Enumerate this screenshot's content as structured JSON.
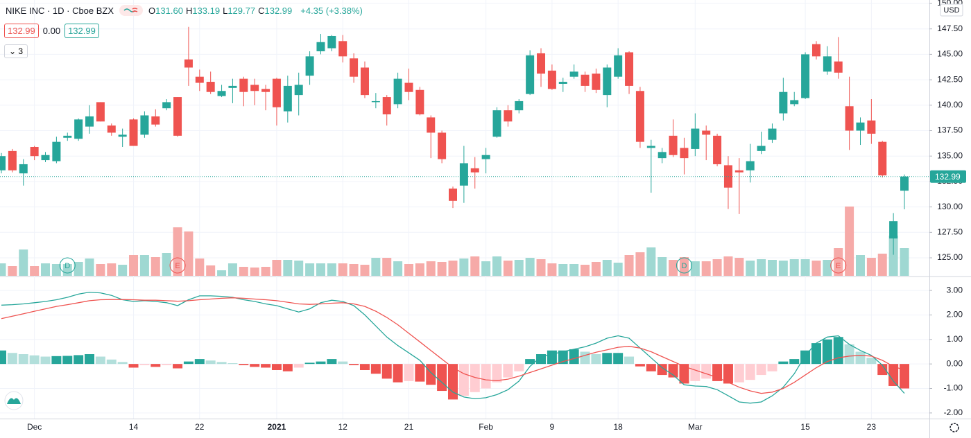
{
  "header": {
    "title": "NIKE INC · 1D · Cboe BZX",
    "ohlc": [
      {
        "key": "O",
        "value": "131.60"
      },
      {
        "key": "H",
        "value": "133.19"
      },
      {
        "key": "L",
        "value": "129.77"
      },
      {
        "key": "C",
        "value": "132.99"
      }
    ],
    "change": "+4.35 (+3.38%)",
    "price_boxes": [
      "132.99",
      "0.00",
      "132.99"
    ],
    "indicators_count": "3"
  },
  "chart_data": [
    {
      "type": "candlestick",
      "currency": "USD",
      "last_price_label": "132.99",
      "grid": true,
      "up_color": "#26a69a",
      "down_color": "#ef5350",
      "volume_up_color": "#9fd8d2",
      "volume_down_color": "#f6aaa8",
      "ylim": [
        123.23,
        150.34
      ],
      "yticks": [
        {
          "value": 150,
          "label": "150.00"
        },
        {
          "value": 147.5,
          "label": "147.50"
        },
        {
          "value": 145,
          "label": "145.00"
        },
        {
          "value": 142.5,
          "label": "142.50"
        },
        {
          "value": 140,
          "label": "140.00"
        },
        {
          "value": 137.5,
          "label": "137.50"
        },
        {
          "value": 135,
          "label": "135.00"
        },
        {
          "value": 132.5,
          "label": "132.50"
        },
        {
          "value": 130,
          "label": "130.00"
        },
        {
          "value": 127.5,
          "label": "127.50"
        },
        {
          "value": 125,
          "label": "125.00"
        }
      ],
      "categories": [
        null,
        null,
        null,
        "Dec",
        null,
        null,
        null,
        null,
        null,
        null,
        null,
        null,
        "14",
        null,
        null,
        null,
        null,
        null,
        "22",
        null,
        null,
        null,
        null,
        null,
        null,
        "2021",
        null,
        null,
        null,
        null,
        null,
        "12",
        null,
        null,
        null,
        null,
        null,
        "21",
        null,
        null,
        null,
        null,
        null,
        null,
        "Feb",
        null,
        null,
        null,
        null,
        null,
        "9",
        null,
        null,
        null,
        null,
        null,
        "18",
        null,
        null,
        null,
        null,
        null,
        null,
        "Mar",
        null,
        null,
        null,
        null,
        null,
        null,
        null,
        null,
        null,
        "15",
        null,
        null,
        null,
        null,
        null,
        "23",
        null,
        null,
        null
      ],
      "events": [
        null,
        null,
        null,
        null,
        null,
        null,
        "D",
        null,
        null,
        null,
        null,
        null,
        null,
        null,
        null,
        null,
        "E",
        null,
        null,
        null,
        null,
        null,
        null,
        null,
        null,
        null,
        null,
        null,
        null,
        null,
        null,
        null,
        null,
        null,
        null,
        null,
        null,
        null,
        null,
        null,
        null,
        null,
        null,
        null,
        null,
        null,
        null,
        null,
        null,
        null,
        null,
        null,
        null,
        null,
        null,
        null,
        null,
        null,
        null,
        null,
        null,
        null,
        "D",
        null,
        null,
        null,
        null,
        null,
        null,
        null,
        null,
        null,
        null,
        null,
        null,
        null,
        "E",
        null,
        null,
        null,
        null,
        null,
        null
      ],
      "open": [
        133.6,
        135.5,
        133.3,
        135.9,
        134.6,
        134.5,
        136.8,
        136.7,
        137.9,
        140.3,
        138.0,
        136.9,
        138.6,
        137.1,
        138.9,
        139.7,
        140.8,
        144.5,
        142.8,
        142.3,
        140.9,
        141.7,
        142.6,
        142.0,
        141.6,
        142.6,
        139.4,
        141.0,
        142.9,
        145.3,
        145.6,
        146.3,
        144.6,
        143.7,
        140.3,
        140.8,
        140.1,
        142.2,
        141.5,
        138.8,
        137.3,
        131.8,
        132.1,
        133.8,
        134.7,
        136.9,
        139.5,
        139.5,
        141.1,
        145.1,
        143.4,
        142.1,
        142.8,
        143.0,
        143.1,
        141.0,
        142.8,
        145.2,
        141.4,
        135.8,
        134.8,
        137.0,
        135.8,
        135.7,
        137.5,
        137.0,
        134.1,
        133.6,
        133.6,
        135.5,
        136.6,
        139.2,
        140.1,
        140.7,
        146.0,
        143.3,
        144.3,
        139.9,
        137.5,
        138.5,
        136.4,
        126.9,
        131.6
      ],
      "high": [
        135.3,
        135.7,
        134.7,
        136.0,
        135.4,
        136.9,
        137.3,
        138.7,
        140.0,
        140.3,
        138.2,
        137.7,
        138.7,
        139.4,
        139.6,
        140.6,
        140.8,
        147.7,
        143.5,
        143.3,
        142.0,
        142.6,
        142.8,
        142.6,
        142.0,
        142.7,
        142.9,
        143.2,
        145.3,
        147.0,
        146.9,
        146.9,
        145.1,
        144.3,
        141.2,
        141.0,
        143.2,
        143.6,
        141.8,
        139.0,
        137.5,
        132.0,
        136.0,
        134.9,
        135.8,
        139.8,
        140.0,
        140.6,
        145.4,
        145.6,
        144.0,
        142.7,
        144.0,
        143.3,
        143.6,
        144.0,
        145.6,
        145.3,
        141.8,
        136.6,
        135.8,
        138.6,
        136.8,
        139.2,
        138.0,
        137.2,
        135.0,
        134.8,
        136.2,
        137.4,
        138.2,
        142.7,
        141.3,
        145.2,
        146.3,
        145.8,
        146.7,
        142.8,
        138.8,
        140.6,
        136.5,
        129.4,
        133.19
      ],
      "low": [
        133.3,
        133.4,
        132.1,
        134.6,
        134.4,
        134.3,
        136.5,
        136.5,
        137.2,
        138.4,
        137.0,
        135.9,
        136.0,
        136.8,
        137.9,
        139.5,
        136.9,
        141.9,
        141.4,
        141.1,
        140.8,
        140.2,
        139.9,
        140.0,
        139.5,
        138.0,
        138.3,
        139.0,
        142.0,
        145.0,
        145.3,
        144.2,
        142.2,
        140.7,
        139.7,
        138.0,
        139.7,
        140.5,
        139.0,
        134.8,
        134.3,
        129.9,
        130.4,
        131.8,
        133.3,
        136.8,
        137.9,
        139.2,
        141.0,
        141.8,
        141.5,
        141.3,
        142.6,
        141.3,
        141.2,
        139.8,
        142.6,
        141.1,
        135.8,
        131.4,
        134.3,
        134.9,
        133.2,
        135.0,
        134.6,
        134.0,
        129.8,
        129.3,
        132.4,
        135.2,
        136.3,
        138.5,
        139.9,
        140.6,
        144.5,
        143.0,
        142.6,
        135.6,
        136.1,
        136.2,
        132.9,
        125.3,
        129.77
      ],
      "close": [
        135.0,
        133.6,
        134.2,
        135.0,
        135.1,
        136.4,
        137.0,
        138.6,
        138.9,
        138.4,
        137.3,
        137.1,
        136.0,
        139.0,
        138.1,
        140.3,
        137.0,
        143.7,
        142.2,
        141.3,
        141.4,
        141.9,
        141.3,
        141.4,
        141.3,
        139.8,
        141.9,
        142.0,
        144.8,
        146.2,
        146.8,
        144.8,
        142.8,
        141.0,
        140.4,
        139.1,
        142.6,
        141.3,
        139.1,
        137.3,
        134.7,
        130.6,
        134.3,
        133.4,
        135.1,
        139.5,
        138.4,
        140.4,
        144.9,
        143.1,
        141.6,
        142.3,
        143.3,
        141.9,
        141.5,
        143.7,
        144.9,
        141.9,
        136.4,
        136.0,
        135.4,
        135.1,
        134.8,
        137.7,
        137.1,
        134.2,
        131.9,
        133.4,
        134.5,
        136.0,
        137.7,
        141.3,
        140.5,
        145.0,
        144.8,
        144.8,
        143.2,
        137.5,
        138.3,
        137.2,
        133.1,
        128.6,
        132.99
      ],
      "volume_ylim": [
        0,
        30
      ],
      "volume": [
        5.4,
        4.2,
        11.4,
        4.2,
        5.4,
        5.1,
        5.1,
        6,
        7.5,
        5.1,
        5.4,
        4.8,
        9,
        9,
        8.1,
        9.9,
        21,
        19.2,
        7.5,
        4.5,
        2.4,
        5.4,
        3.9,
        3.6,
        3.9,
        6.9,
        6.9,
        6.6,
        5.4,
        5.4,
        5.4,
        5.4,
        5.1,
        4.8,
        7.8,
        7.8,
        6.3,
        5.1,
        5.4,
        6.3,
        6,
        6.6,
        7.5,
        8.4,
        6.3,
        8.4,
        6.6,
        6.9,
        7.8,
        7.2,
        5.4,
        5.1,
        5.1,
        4.8,
        6,
        6.9,
        5.7,
        9,
        10.2,
        12.3,
        8.1,
        6.9,
        8.1,
        6.3,
        6.3,
        7.2,
        8.4,
        7.8,
        6.6,
        7.2,
        6.9,
        6.6,
        7.2,
        7.2,
        6.6,
        6.9,
        12,
        30,
        9,
        7.8,
        9.6,
        17.4,
        12
      ]
    },
    {
      "type": "macd",
      "grid": true,
      "ylim": [
        -2.23,
        3.54
      ],
      "yticks": [
        {
          "value": 3,
          "label": "3.00"
        },
        {
          "value": 2,
          "label": "2.00"
        },
        {
          "value": 1,
          "label": "1.00"
        },
        {
          "value": 0,
          "label": "0.00"
        },
        {
          "value": -1,
          "label": "-1.00"
        },
        {
          "value": -2,
          "label": "-2.00"
        }
      ],
      "macd_color": "#26a69a",
      "signal_color": "#ef5350",
      "histogram_colors": [
        "#26a69a",
        "#b2dfdb",
        "#ffcdd2",
        "#ef5350"
      ],
      "histogram": [
        0.55,
        0.45,
        0.4,
        0.35,
        0.3,
        0.32,
        0.33,
        0.36,
        0.4,
        0.3,
        0.18,
        0.08,
        -0.15,
        -0.05,
        -0.12,
        -0.05,
        -0.18,
        0.1,
        0.2,
        0.14,
        0.08,
        0.03,
        -0.05,
        -0.12,
        -0.15,
        -0.25,
        -0.3,
        -0.15,
        0.05,
        0.1,
        0.2,
        0.1,
        -0.05,
        -0.25,
        -0.4,
        -0.6,
        -0.75,
        -0.7,
        -0.72,
        -0.85,
        -1.1,
        -1.45,
        -1.3,
        -1.15,
        -1.0,
        -0.75,
        -0.55,
        -0.3,
        0.2,
        0.4,
        0.55,
        0.55,
        0.6,
        0.5,
        0.4,
        0.45,
        0.45,
        0.3,
        -0.1,
        -0.3,
        -0.45,
        -0.55,
        -0.8,
        -0.7,
        -0.6,
        -0.7,
        -0.8,
        -0.75,
        -0.65,
        -0.45,
        -0.3,
        0.1,
        0.2,
        0.55,
        0.85,
        1.0,
        1.1,
        0.8,
        0.5,
        0.25,
        -0.45,
        -0.9,
        -1.0
      ],
      "macd": [
        2.4,
        2.42,
        2.45,
        2.5,
        2.55,
        2.62,
        2.72,
        2.85,
        2.93,
        2.9,
        2.8,
        2.62,
        2.55,
        2.58,
        2.55,
        2.5,
        2.38,
        2.62,
        2.78,
        2.78,
        2.76,
        2.72,
        2.62,
        2.55,
        2.45,
        2.38,
        2.25,
        2.12,
        2.25,
        2.5,
        2.6,
        2.55,
        2.38,
        2.0,
        1.55,
        1.1,
        0.75,
        0.45,
        0.15,
        -0.35,
        -0.75,
        -1.15,
        -1.35,
        -1.42,
        -1.38,
        -1.25,
        -1.05,
        -0.7,
        -0.1,
        0.3,
        0.4,
        0.5,
        0.6,
        0.7,
        0.85,
        1.05,
        1.15,
        1.05,
        0.65,
        0.25,
        -0.15,
        -0.45,
        -0.85,
        -0.9,
        -0.92,
        -1.05,
        -1.3,
        -1.55,
        -1.6,
        -1.55,
        -1.3,
        -0.95,
        -0.4,
        0.35,
        0.85,
        1.1,
        1.15,
        0.8,
        0.55,
        0.35,
        -0.05,
        -0.7,
        -1.2
      ],
      "signal": [
        1.85,
        1.95,
        2.05,
        2.15,
        2.25,
        2.35,
        2.42,
        2.5,
        2.58,
        2.62,
        2.63,
        2.63,
        2.62,
        2.6,
        2.6,
        2.58,
        2.56,
        2.58,
        2.62,
        2.65,
        2.68,
        2.7,
        2.68,
        2.65,
        2.62,
        2.58,
        2.52,
        2.45,
        2.43,
        2.45,
        2.48,
        2.5,
        2.45,
        2.35,
        2.15,
        1.9,
        1.6,
        1.25,
        0.9,
        0.55,
        0.2,
        -0.15,
        -0.4,
        -0.55,
        -0.65,
        -0.68,
        -0.62,
        -0.5,
        -0.35,
        -0.2,
        -0.05,
        0.1,
        0.22,
        0.35,
        0.48,
        0.58,
        0.68,
        0.72,
        0.65,
        0.5,
        0.3,
        0.1,
        -0.1,
        -0.25,
        -0.4,
        -0.55,
        -0.75,
        -0.95,
        -1.1,
        -1.2,
        -1.15,
        -1.0,
        -0.75,
        -0.45,
        -0.15,
        0.1,
        0.25,
        0.32,
        0.35,
        0.32,
        0.15,
        -0.1,
        -0.25
      ]
    }
  ]
}
